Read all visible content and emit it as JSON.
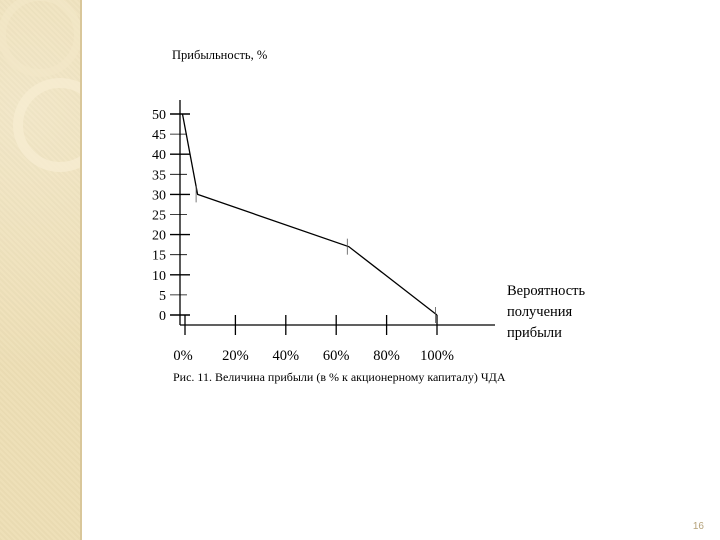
{
  "slide": {
    "page_number": "16",
    "accent_color": "#eedfb6"
  },
  "chart_data": {
    "type": "line",
    "ylabel": "Прибыльность, %",
    "xlabel": "Вероятность получения прибыли",
    "xlabel_lines": [
      "Вероятность",
      "получения",
      "прибыли"
    ],
    "caption": "Рис. 11. Величина прибыли (в % к акционерному капиталу) ЧДА",
    "y_ticks": [
      "0",
      "5",
      "10",
      "15",
      "20",
      "25",
      "30",
      "35",
      "40",
      "45",
      "50"
    ],
    "x_ticks": [
      "0%",
      "20%",
      "40%",
      "60%",
      "80%",
      "100%"
    ],
    "x_tick_values": [
      0,
      20,
      40,
      60,
      80,
      100
    ],
    "ylim": [
      0,
      50
    ],
    "xlim": [
      0,
      100
    ],
    "grid": false,
    "series": [
      {
        "x": [
          -1,
          5,
          65,
          100
        ],
        "y": [
          50,
          30,
          17,
          0
        ]
      }
    ]
  }
}
